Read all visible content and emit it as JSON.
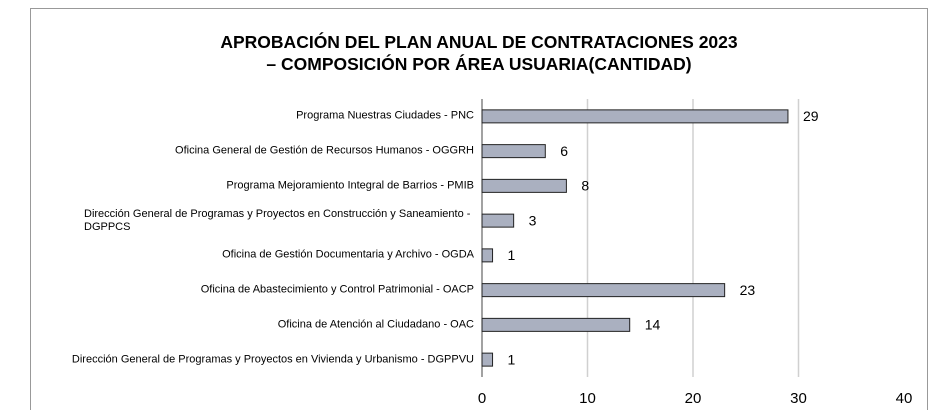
{
  "chart_data": {
    "type": "bar",
    "orientation": "horizontal",
    "title": [
      "APROBACIÓN DEL PLAN ANUAL DE CONTRATACIONES 2023",
      "– COMPOSICIÓN POR ÁREA USUARIA(CANTIDAD)"
    ],
    "categories": [
      "Programa Nuestras Ciudades - PNC",
      "Oficina General de Gestión de Recursos Humanos - OGGRH",
      "Programa Mejoramiento Integral de Barrios - PMIB",
      "Dirección General de Programas y Proyectos en Construcción y Saneamiento - DGPPCS",
      "Oficina de Gestión Documentaria y Archivo - OGDA",
      "Oficina de Abastecimiento y Control Patrimonial - OACP",
      "Oficina de Atención al Ciudadano - OAC",
      "Dirección General de Programas y Proyectos en Vivienda y Urbanismo - DGPPVU"
    ],
    "values": [
      29,
      6,
      8,
      3,
      1,
      23,
      14,
      1
    ],
    "color": "#aab0c0",
    "xlim": [
      0,
      40
    ],
    "xticks": [
      0,
      10,
      20,
      30,
      40
    ],
    "grid": true
  }
}
